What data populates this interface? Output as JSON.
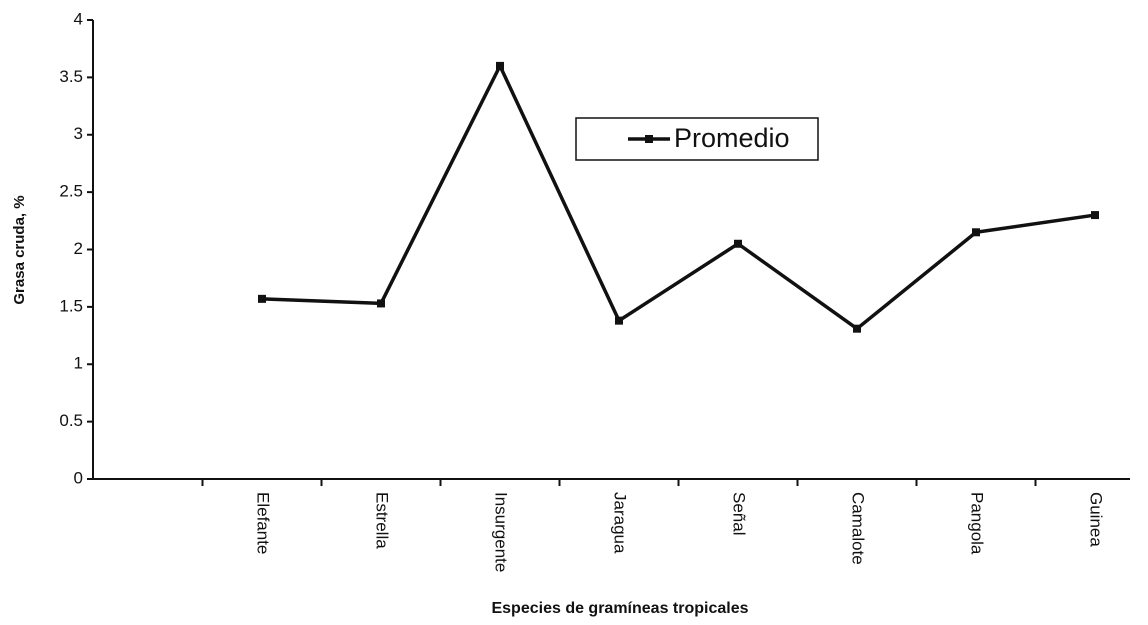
{
  "chart_data": {
    "type": "line",
    "xlabel": "Especies de gramíneas tropicales",
    "ylabel": "Grasa cruda, %",
    "categories": [
      "Elefante",
      "Estrella",
      "Insurgente",
      "Jaragua",
      "Señal",
      "Camalote",
      "Pangola",
      "Guinea"
    ],
    "series": [
      {
        "name": "Promedio",
        "color": "#111111",
        "values": [
          1.57,
          1.53,
          3.6,
          1.38,
          2.05,
          1.31,
          2.15,
          2.3
        ]
      }
    ],
    "ylim": [
      0,
      4
    ],
    "yticks": [
      0,
      0.5,
      1,
      1.5,
      2,
      2.5,
      3,
      3.5,
      4
    ]
  }
}
